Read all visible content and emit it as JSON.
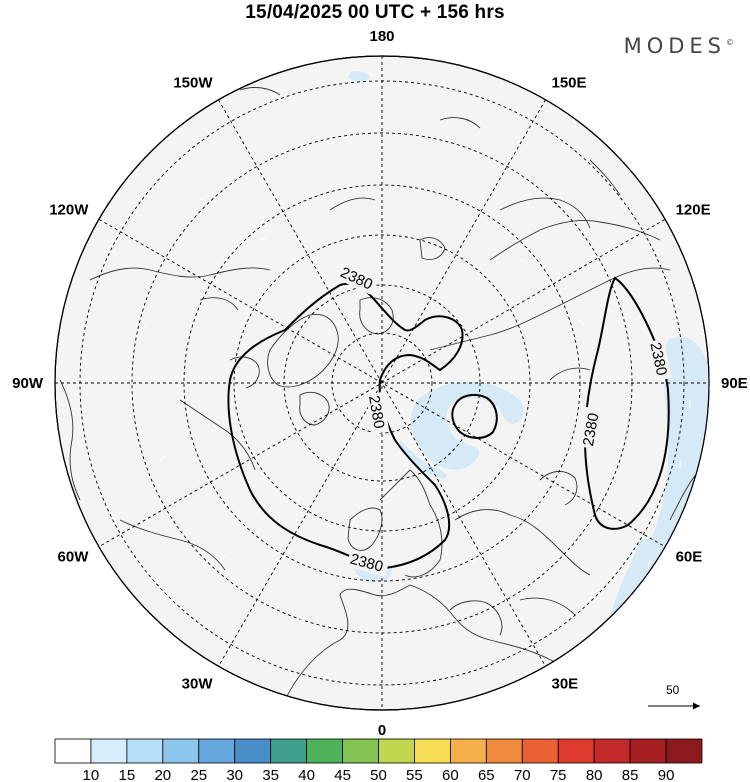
{
  "title": "15/04/2025  00 UTC  + 156 hrs",
  "brand": "MODES",
  "brand_mark": "©",
  "longitude_labels": [
    {
      "text": "180",
      "deg": 180
    },
    {
      "text": "150E",
      "deg": 150
    },
    {
      "text": "120E",
      "deg": 120
    },
    {
      "text": "90E",
      "deg": 90
    },
    {
      "text": "60E",
      "deg": 60
    },
    {
      "text": "30E",
      "deg": 30
    },
    {
      "text": "0",
      "deg": 0
    },
    {
      "text": "30W",
      "deg": -30
    },
    {
      "text": "60W",
      "deg": -60
    },
    {
      "text": "90W",
      "deg": -90
    },
    {
      "text": "120W",
      "deg": -120
    },
    {
      "text": "150W",
      "deg": -150
    }
  ],
  "contour_labels": [
    "2380",
    "2380",
    "2380",
    "2380",
    "2380"
  ],
  "reference_vector": "50",
  "colorbar": {
    "labels": [
      "10",
      "15",
      "20",
      "25",
      "30",
      "35",
      "40",
      "45",
      "50",
      "55",
      "60",
      "65",
      "70",
      "75",
      "80",
      "85",
      "90"
    ],
    "colors": [
      "#ffffff",
      "#d6eefb",
      "#b4dff6",
      "#8cc6ec",
      "#65a7dc",
      "#4a8ec9",
      "#3fa08d",
      "#4db35a",
      "#84c351",
      "#c2d64f",
      "#f7dc55",
      "#f5b04a",
      "#ef8a3d",
      "#ea6233",
      "#dc3b2d",
      "#c22a2a",
      "#a51f22",
      "#8c1a1c"
    ]
  },
  "colors": {
    "land": "#f2f2f2",
    "shading_light": "#d8ebf7",
    "contour": "#000000",
    "grid": "#000000"
  }
}
